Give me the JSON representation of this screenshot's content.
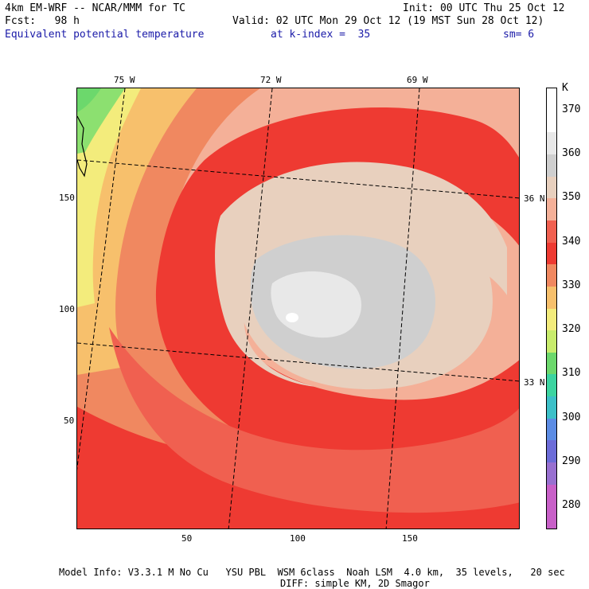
{
  "header": {
    "model": "4km EM-WRF -- NCAR/MMM for TC",
    "init": "Init: 00 UTC Thu 25 Oct 12",
    "fcst": "Fcst:   98 h",
    "valid": "Valid: 02 UTC Mon 29 Oct 12 (19 MST Sun 28 Oct 12)",
    "field": "Equivalent potential temperature",
    "level": "at k-index =  35",
    "smooth": "sm= 6"
  },
  "map": {
    "lon_labels": [
      "75 W",
      "72 W",
      "69 W"
    ],
    "lat_labels": [
      "36 N",
      "33 N"
    ],
    "y_ticks": [
      "150",
      "100",
      "50"
    ],
    "x_ticks": [
      "50",
      "100",
      "150"
    ]
  },
  "colorbar": {
    "unit": "K",
    "levels": [
      {
        "label": "",
        "color": "#ffffff"
      },
      {
        "label": "370",
        "color": "#ffffff"
      },
      {
        "label": "",
        "color": "#e8e8e8"
      },
      {
        "label": "360",
        "color": "#cfcfcf"
      },
      {
        "label": "",
        "color": "#e8d0be"
      },
      {
        "label": "350",
        "color": "#f4b098"
      },
      {
        "label": "",
        "color": "#f06050"
      },
      {
        "label": "340",
        "color": "#ee3a32"
      },
      {
        "label": "",
        "color": "#f08860"
      },
      {
        "label": "330",
        "color": "#f7c06c"
      },
      {
        "label": "",
        "color": "#f3ec7c"
      },
      {
        "label": "320",
        "color": "#c8ec6c"
      },
      {
        "label": "",
        "color": "#6cd86c"
      },
      {
        "label": "310",
        "color": "#3cd4a0"
      },
      {
        "label": "",
        "color": "#3cc0c8"
      },
      {
        "label": "300",
        "color": "#5c8ce4"
      },
      {
        "label": "",
        "color": "#6c6cd8"
      },
      {
        "label": "290",
        "color": "#9870d0"
      },
      {
        "label": "",
        "color": "#c860c8"
      },
      {
        "label": "280",
        "color": "#c860c8"
      }
    ]
  },
  "footer": {
    "line1": "Model Info: V3.3.1 M No Cu   YSU PBL  WSM 6class  Noah LSM  4.0 km,  35 levels,   20 sec",
    "line2": "DIFF: simple KM, 2D Smagor"
  }
}
